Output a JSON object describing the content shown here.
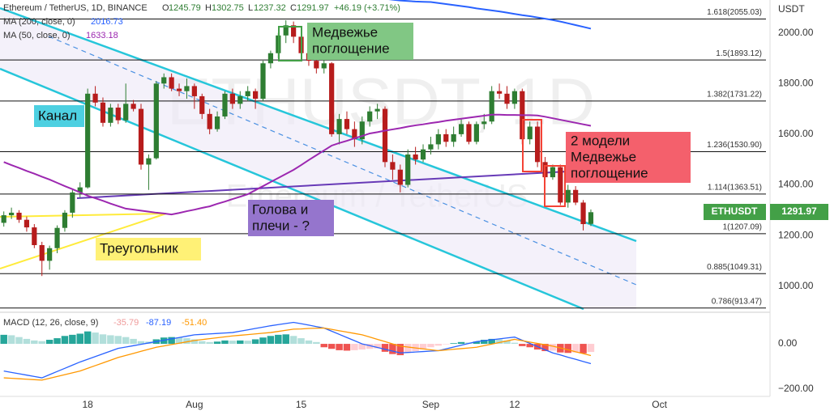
{
  "chart_data": [
    {
      "type": "candlestick",
      "header": {
        "symbol": "Ethereum / TetherUS, 1D, BINANCE",
        "ohlc_labels": [
          "O",
          "H",
          "L",
          "C"
        ],
        "change": "+46.19 (+3.71%)"
      },
      "watermark": "ETHUSDT, 1D",
      "watermark_sub": "Ethereum / TetherUS",
      "y_unit": "USDT",
      "price_tag_name": "ETHUSDT",
      "categories": [
        null,
        null,
        null,
        null,
        null,
        null,
        null,
        null,
        null,
        null,
        null,
        "18",
        null,
        null,
        null,
        null,
        null,
        null,
        null,
        null,
        null,
        null,
        null,
        null,
        null,
        "Aug",
        null,
        null,
        null,
        null,
        null,
        null,
        null,
        null,
        null,
        null,
        null,
        null,
        null,
        "15",
        null,
        null,
        null,
        null,
        null,
        null,
        null,
        null,
        null,
        null,
        null,
        null,
        null,
        null,
        null,
        null,
        "Sep",
        null,
        null,
        null,
        null,
        null,
        null,
        null,
        null,
        null,
        null,
        "12",
        null,
        null,
        null,
        null,
        null,
        null,
        null,
        null,
        null,
        null,
        null,
        null,
        null,
        null,
        null,
        null,
        null,
        null,
        "Oct",
        null,
        null,
        null,
        null,
        null,
        null,
        null,
        null,
        null,
        null,
        null,
        null,
        null,
        null
      ],
      "open": [
        1250,
        1280,
        1290,
        1262,
        1232,
        1162,
        1100,
        1150,
        1230,
        1290,
        1370,
        1390,
        1760,
        1725,
        1645,
        1705,
        1655,
        1720,
        1700,
        1480,
        1505,
        1800,
        1825,
        1780,
        1770,
        1790,
        1750,
        1680,
        1620,
        1670,
        1760,
        1720,
        1750,
        1770,
        1740,
        1880,
        1920,
        1990,
        2030,
        1985,
        1920,
        1890,
        1860,
        1880,
        1600,
        1660,
        1620,
        1580,
        1650,
        1690,
        1700,
        1490,
        1460,
        1400,
        1520,
        1500,
        1540,
        1560,
        1600,
        1570,
        1600,
        1640,
        1570,
        1640,
        1650,
        1770,
        1760,
        1720,
        1770,
        1580,
        1630,
        1490,
        1430,
        1470,
        1330,
        1380,
        1330,
        1245.79,
        null,
        null,
        null,
        null,
        null,
        null,
        null,
        null,
        null,
        null,
        null,
        null,
        null,
        null,
        null,
        null,
        null,
        null,
        null,
        null,
        null,
        null,
        null
      ],
      "high": [
        1295,
        1310,
        1300,
        1275,
        1245,
        1175,
        1160,
        1240,
        1300,
        1380,
        1410,
        1780,
        1790,
        1745,
        1720,
        1720,
        1800,
        1735,
        1720,
        1520,
        1810,
        1840,
        1840,
        1800,
        1820,
        1800,
        1760,
        1700,
        1690,
        1770,
        1780,
        1770,
        1790,
        1780,
        1890,
        1930,
        2000,
        2050,
        2045,
        2000,
        1940,
        1910,
        1900,
        1885,
        1680,
        1690,
        1650,
        1670,
        1710,
        1720,
        1710,
        1520,
        1480,
        1540,
        1550,
        1560,
        1590,
        1620,
        1620,
        1630,
        1660,
        1650,
        1650,
        1680,
        1790,
        1800,
        1790,
        1780,
        1780,
        1650,
        1650,
        1510,
        1480,
        1480,
        1400,
        1395,
        1340,
        1302.75,
        null,
        null,
        null,
        null,
        null,
        null,
        null,
        null,
        null,
        null,
        null,
        null,
        null,
        null,
        null,
        null,
        null,
        null,
        null,
        null,
        null,
        null,
        null
      ],
      "low": [
        1235,
        1265,
        1250,
        1215,
        1150,
        1040,
        1065,
        1130,
        1215,
        1270,
        1350,
        1385,
        1710,
        1630,
        1630,
        1640,
        1645,
        1690,
        1460,
        1380,
        1500,
        1780,
        1770,
        1750,
        1740,
        1700,
        1660,
        1600,
        1610,
        1660,
        1700,
        1700,
        1730,
        1700,
        1730,
        1860,
        1900,
        1960,
        1960,
        1900,
        1870,
        1840,
        1840,
        1590,
        1560,
        1600,
        1550,
        1560,
        1630,
        1660,
        1470,
        1420,
        1370,
        1390,
        1480,
        1490,
        1520,
        1540,
        1550,
        1550,
        1590,
        1560,
        1560,
        1620,
        1640,
        1740,
        1700,
        1700,
        1560,
        1560,
        1470,
        1410,
        1420,
        1320,
        1310,
        1320,
        1220,
        1237.32,
        null,
        null,
        null,
        null,
        null,
        null,
        null,
        null,
        null,
        null,
        null,
        null,
        null,
        null,
        null,
        null,
        null,
        null,
        null,
        null,
        null,
        null,
        null
      ],
      "close": [
        1280,
        1290,
        1262,
        1232,
        1162,
        1100,
        1150,
        1230,
        1290,
        1370,
        1390,
        1760,
        1725,
        1645,
        1705,
        1655,
        1720,
        1700,
        1480,
        1505,
        1800,
        1825,
        1780,
        1770,
        1790,
        1750,
        1680,
        1620,
        1670,
        1760,
        1720,
        1750,
        1770,
        1740,
        1880,
        1920,
        1990,
        2030,
        1985,
        1920,
        1890,
        1860,
        1880,
        1600,
        1660,
        1620,
        1580,
        1650,
        1690,
        1700,
        1490,
        1460,
        1400,
        1520,
        1500,
        1540,
        1560,
        1600,
        1570,
        1600,
        1640,
        1570,
        1640,
        1650,
        1770,
        1760,
        1720,
        1770,
        1580,
        1630,
        1490,
        1430,
        1470,
        1330,
        1380,
        1330,
        1245,
        1291.97,
        null,
        null,
        null,
        null,
        null,
        null,
        null,
        null,
        null,
        null,
        null,
        null,
        null,
        null,
        null,
        null,
        null,
        null,
        null,
        null,
        null,
        null,
        null
      ],
      "up_color": "#2e7d32",
      "down_color": "#b71c1c",
      "series": [
        {
          "name": "MA (200, close, 0)",
          "color": "#2962ff",
          "values": [
            null,
            null,
            null,
            null,
            null,
            null,
            null,
            null,
            null,
            null,
            null,
            null,
            null,
            null,
            null,
            null,
            null,
            null,
            null,
            null,
            null,
            null,
            null,
            null,
            null,
            null,
            null,
            null,
            null,
            null,
            null,
            null,
            null,
            null,
            null,
            null,
            null,
            null,
            null,
            null,
            null,
            null,
            null,
            null,
            null,
            null,
            null,
            null,
            null,
            null,
            2135,
            2131,
            2128,
            2126,
            2124,
            2123,
            2122,
            2118,
            2114,
            2110,
            2106,
            2102,
            2097,
            2093,
            2089,
            2085,
            2080,
            2075,
            2070,
            2066,
            2061,
            2056,
            2051,
            2045,
            2038,
            2031,
            2024,
            2016.73,
            null,
            null,
            null,
            null,
            null,
            null,
            null,
            null,
            null,
            null,
            null,
            null,
            null,
            null,
            null,
            null,
            null,
            null,
            null,
            null,
            null,
            null,
            null
          ]
        },
        {
          "name": "MA (50, close, 0)",
          "color": "#9c27b0",
          "values": [
            1490,
            1478,
            1467,
            1455,
            1444,
            1432,
            1421,
            1408,
            1395,
            1383,
            1370,
            1357,
            1347,
            1337,
            1326,
            1316,
            1306,
            1302,
            1298,
            1294,
            1290,
            1287,
            1283,
            1289,
            1296,
            1302,
            1309,
            1315,
            1325,
            1334,
            1344,
            1353,
            1363,
            1379,
            1395,
            1411,
            1427,
            1443,
            1459,
            1478,
            1498,
            1517,
            1536,
            1555,
            1565,
            1574,
            1584,
            1593,
            1603,
            1608,
            1614,
            1619,
            1624,
            1630,
            1635,
            1639,
            1644,
            1648,
            1653,
            1657,
            1661,
            1665,
            1669,
            1673,
            1677,
            1677,
            1676,
            1676,
            1675,
            1675,
            1674,
            1669,
            1663,
            1657,
            1651,
            1645,
            1639,
            1633.18,
            null,
            null,
            null,
            null,
            null,
            null,
            null,
            null,
            null,
            null,
            null,
            null,
            null,
            null,
            null,
            null,
            null,
            null,
            null,
            null,
            null,
            null,
            null
          ]
        }
      ],
      "levels": [
        {
          "value": 2055.03,
          "label": "1.618(2055.03)"
        },
        {
          "value": 1893.12,
          "label": "1.5(1893.12)"
        },
        {
          "value": 1731.22,
          "label": "1.382(1731.22)"
        },
        {
          "value": 1530.9,
          "label": "1.236(1530.90)"
        },
        {
          "value": 1363.51,
          "label": "1.114(1363.51)"
        },
        {
          "value": 1207.09,
          "label": "1(1207.09)"
        },
        {
          "value": 1049.31,
          "label": "0.885(1049.31)"
        },
        {
          "value": 913.47,
          "label": "0.786(913.47)"
        }
      ],
      "annotations": [
        {
          "lines": [
            "Медвежье",
            "поглощение"
          ]
        },
        {
          "lines": [
            "Канал"
          ]
        },
        {
          "lines": [
            "Голова и",
            "плечи - ?"
          ]
        },
        {
          "lines": [
            "Треугольник"
          ]
        },
        {
          "lines": [
            "2 модели",
            "Медвежье",
            "поглощение"
          ]
        }
      ],
      "ylim": [
        900,
        2130
      ],
      "yticks": [
        {
          "value": 1000,
          "label": "1000.00"
        },
        {
          "value": 1200,
          "label": "1200.00"
        },
        {
          "value": 1400,
          "label": "1400.00"
        },
        {
          "value": 1600,
          "label": "1600.00"
        },
        {
          "value": 1800,
          "label": "1800.00"
        },
        {
          "value": 2000,
          "label": "2000.00"
        }
      ]
    },
    {
      "type": "macd",
      "title": "MACD (12, 26, close, 9)",
      "histogram": {
        "values": [
          40,
          38,
          30,
          22,
          15,
          12,
          18,
          25,
          35,
          40,
          45,
          55,
          50,
          42,
          38,
          35,
          30,
          22,
          12,
          10,
          20,
          28,
          30,
          28,
          25,
          20,
          12,
          8,
          10,
          15,
          14,
          15,
          14,
          20,
          28,
          35,
          40,
          42,
          35,
          25,
          15,
          8,
          -15,
          -22,
          -28,
          -30,
          -28,
          -25,
          -22,
          -20,
          -35,
          -45,
          -50,
          -40,
          -32,
          -25,
          -15,
          -8,
          -2,
          3,
          8,
          6,
          10,
          18,
          22,
          20,
          15,
          5,
          -10,
          -15,
          -25,
          -32,
          -30,
          -38,
          -40,
          -38,
          -42,
          -35.79,
          null,
          null,
          null,
          null,
          null,
          null,
          null,
          null,
          null,
          null,
          null,
          null,
          null,
          null,
          null,
          null,
          null,
          null,
          null,
          null,
          null,
          null,
          null
        ],
        "colors": {
          "up_rising": "#26a69a",
          "up_falling": "#b2dfdb",
          "down_falling": "#ef5350",
          "down_rising": "#ffcdd2"
        }
      },
      "series": [
        {
          "name": "MACD",
          "color": "#2962ff",
          "values": [
            -120,
            -126,
            -132,
            -138,
            -144,
            -150,
            -136,
            -122,
            -108,
            -94,
            -80,
            -68,
            -56,
            -44,
            -32,
            -20,
            -14,
            -8,
            -2,
            4,
            10,
            16,
            22,
            28,
            34,
            40,
            42,
            44,
            46,
            48,
            50,
            56,
            62,
            68,
            74,
            80,
            85,
            90,
            95,
            89,
            83,
            76,
            70,
            56,
            42,
            28,
            14,
            0,
            -8,
            -16,
            -24,
            -32,
            -40,
            -38,
            -36,
            -34,
            -32,
            -30,
            -22,
            -14,
            -6,
            2,
            10,
            14,
            18,
            22,
            26,
            30,
            16,
            2,
            -12,
            -26,
            -40,
            -49,
            -59,
            -68,
            -78,
            -87.19,
            null,
            null,
            null,
            null,
            null,
            null,
            null,
            null,
            null,
            null,
            null,
            null,
            null,
            null,
            null,
            null,
            null,
            null,
            null,
            null,
            null,
            null,
            null
          ]
        },
        {
          "name": "Signal",
          "color": "#ff9800",
          "legend_label": "-51.40",
          "values": [
            -150,
            -152,
            -154,
            -156,
            -158,
            -160,
            -152,
            -144,
            -136,
            -128,
            -120,
            -108,
            -96,
            -84,
            -72,
            -60,
            -51,
            -42,
            -33,
            -24,
            -15,
            -9,
            -3,
            3,
            9,
            15,
            19,
            23,
            27,
            31,
            35,
            38,
            41,
            44,
            47,
            50,
            55,
            60,
            65,
            66,
            68,
            69,
            70,
            64,
            58,
            52,
            46,
            40,
            30,
            20,
            10,
            0,
            -10,
            -14,
            -18,
            -22,
            -26,
            -30,
            -27,
            -24,
            -21,
            -18,
            -15,
            -8,
            -1,
            6,
            13,
            20,
            14,
            8,
            2,
            -4,
            -10,
            -18,
            -26,
            -35,
            -43,
            -51.4,
            null,
            null,
            null,
            null,
            null,
            null,
            null,
            null,
            null,
            null,
            null,
            null,
            null,
            null,
            null,
            null,
            null,
            null,
            null,
            null,
            null,
            null,
            null
          ]
        }
      ],
      "ylim": [
        -232,
        136
      ],
      "yticks": [
        {
          "value": 0,
          "label": "0.00"
        },
        {
          "value": -200,
          "label": "−200.00"
        }
      ]
    }
  ]
}
